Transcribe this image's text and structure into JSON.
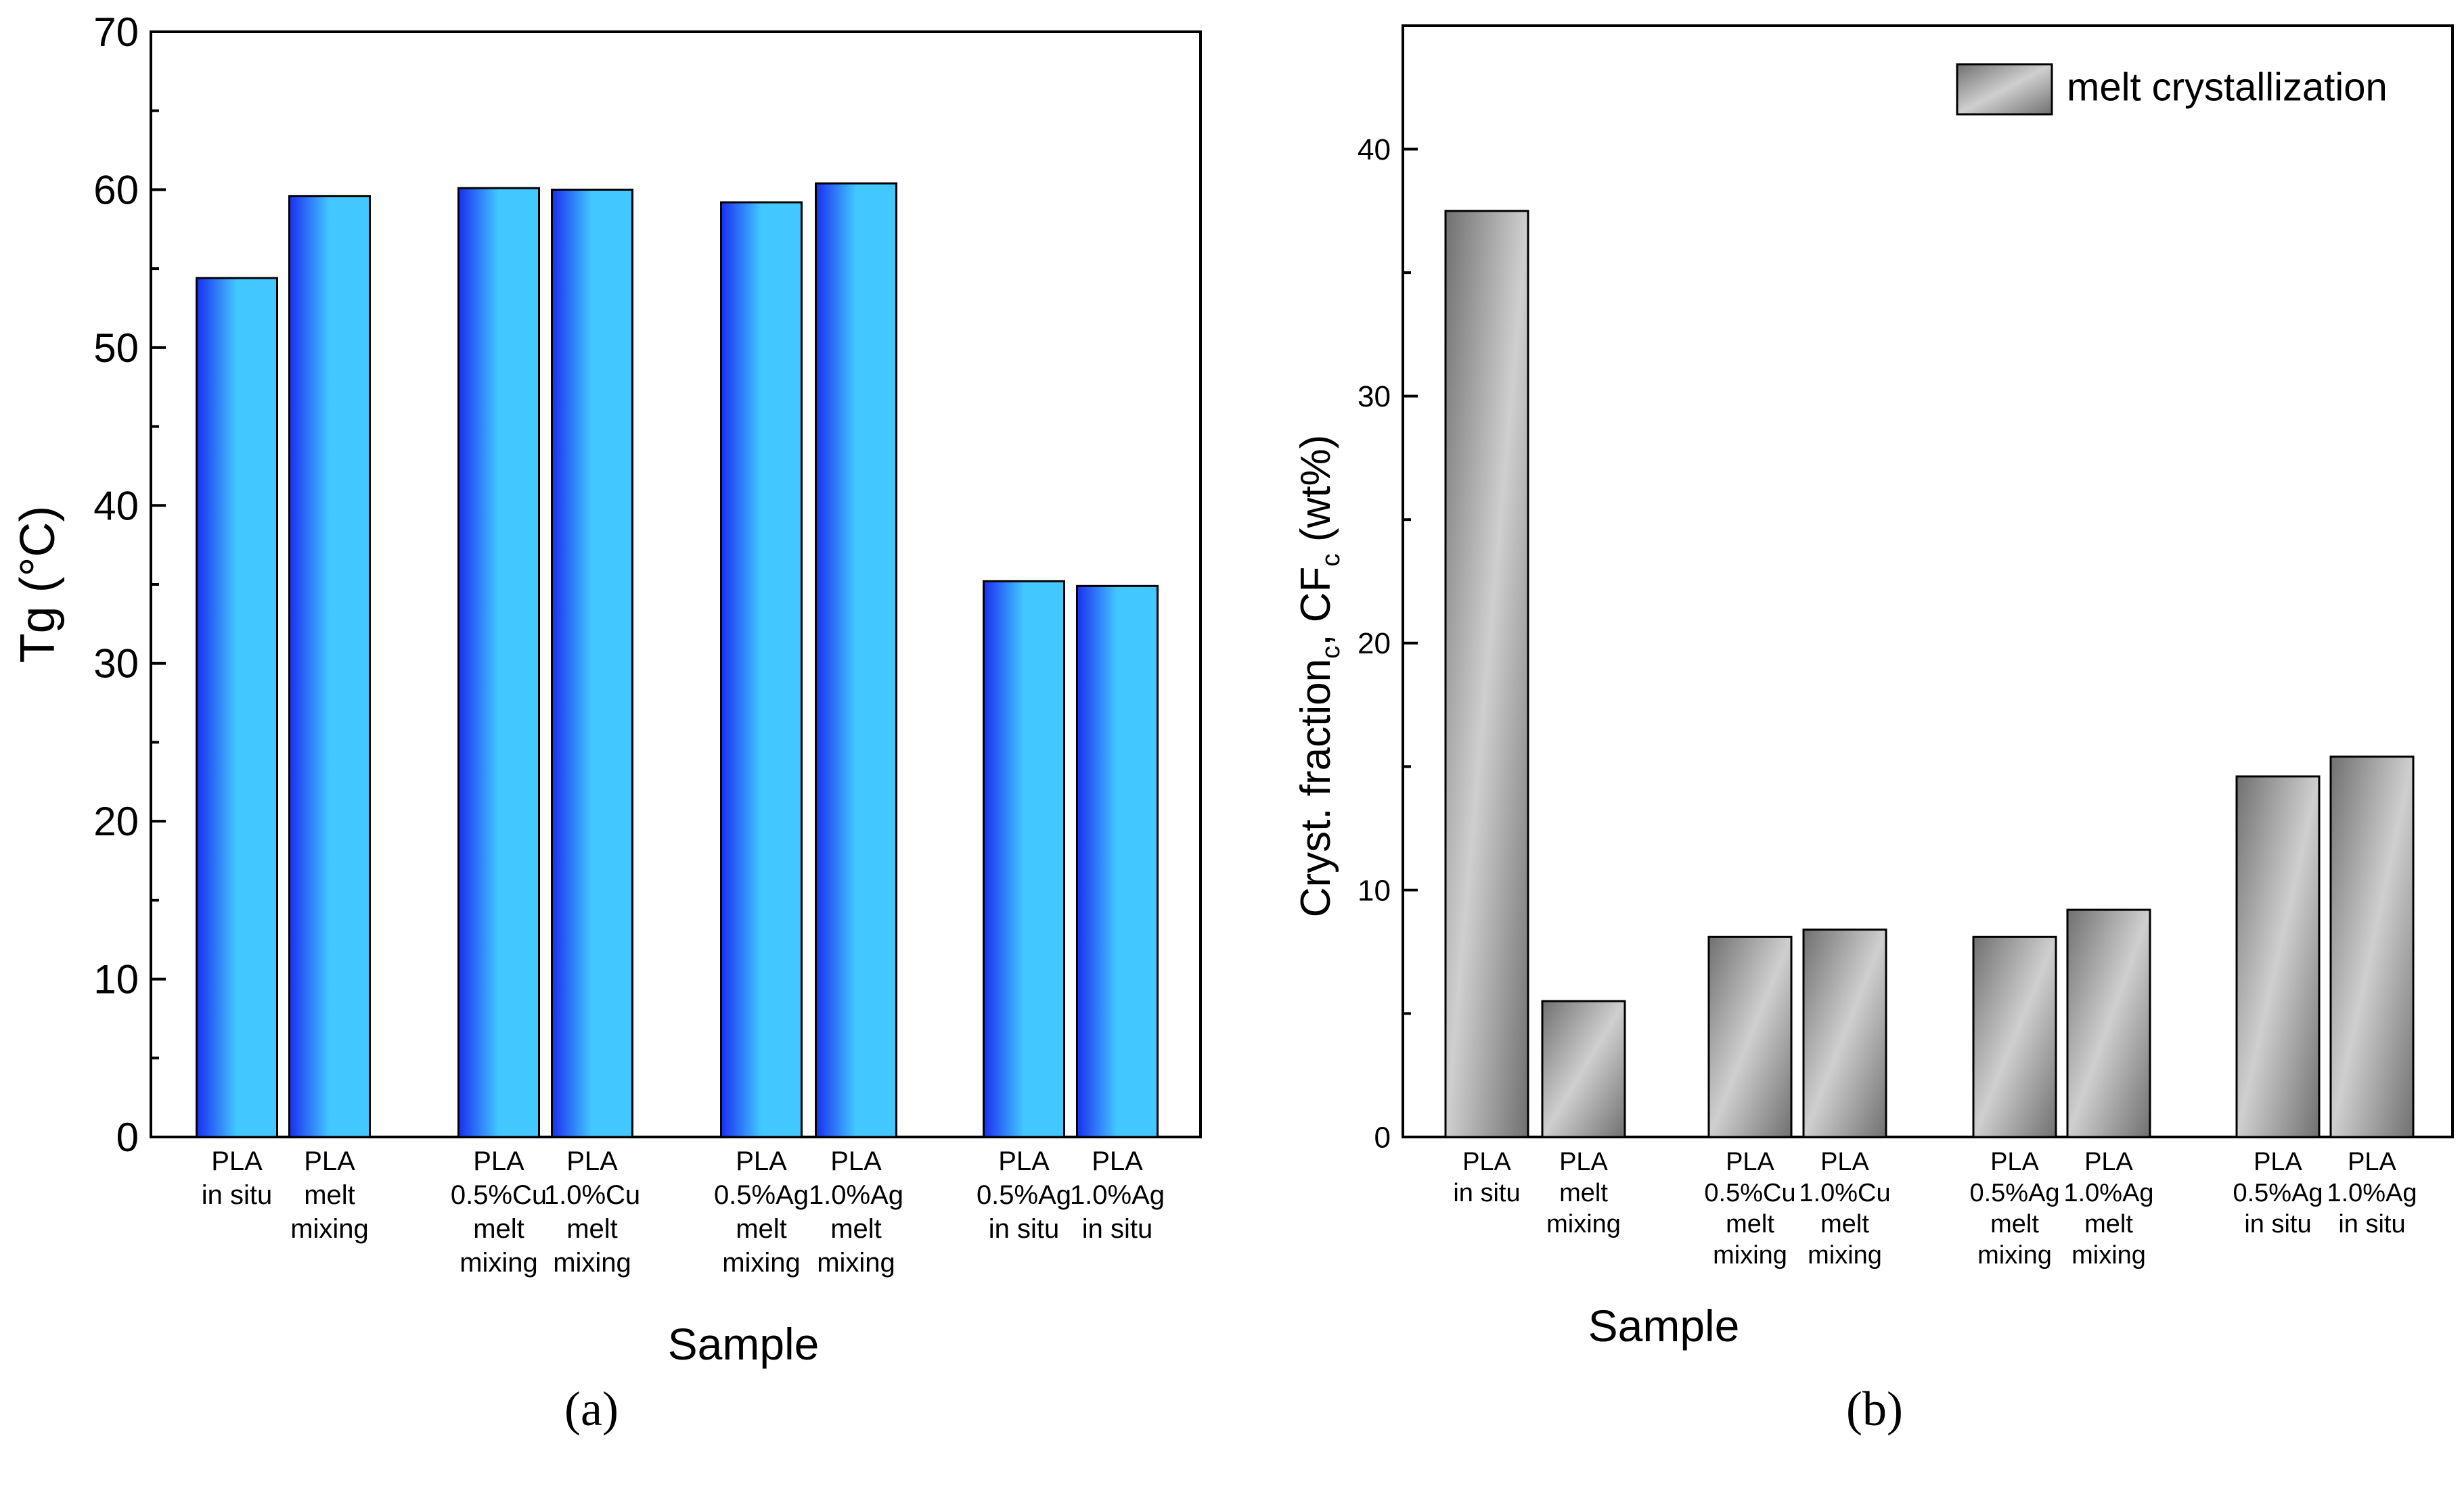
{
  "chart_data": [
    {
      "type": "bar",
      "panel_label": "(a)",
      "xlabel": "Sample",
      "ylabel": "Tg (°C)",
      "ylim": [
        0,
        70
      ],
      "yticks": [
        0,
        10,
        20,
        30,
        40,
        50,
        60,
        70
      ],
      "grid": false,
      "categories": [
        [
          "PLA",
          "in situ"
        ],
        [
          "PLA",
          "melt",
          "mixing"
        ],
        [
          "PLA",
          "0.5%Cu",
          "melt",
          "mixing"
        ],
        [
          "PLA",
          "1.0%Cu",
          "melt",
          "mixing"
        ],
        [
          "PLA",
          "0.5%Ag",
          "melt",
          "mixing"
        ],
        [
          "PLA",
          "1.0%Ag",
          "melt",
          "mixing"
        ],
        [
          "PLA",
          "0.5%Ag",
          "in situ"
        ],
        [
          "PLA",
          "1.0%Ag",
          "in situ"
        ]
      ],
      "groups": [
        [
          0,
          1
        ],
        [
          2,
          3
        ],
        [
          4,
          5
        ],
        [
          6,
          7
        ]
      ],
      "values": [
        54.4,
        59.6,
        60.1,
        60.0,
        59.2,
        60.4,
        35.2,
        34.9
      ],
      "colors": {
        "dark": "#1a2ff0",
        "light": "#42c8ff"
      }
    },
    {
      "type": "bar",
      "panel_label": "(b)",
      "xlabel": "Sample",
      "ylabel_parts": [
        "Cryst. fraction",
        "c",
        ", CF",
        "c",
        " (wt%)"
      ],
      "ylim": [
        0,
        45
      ],
      "yticks": [
        0,
        10,
        20,
        30,
        40
      ],
      "grid": false,
      "legend": {
        "position": "top-right",
        "entries": [
          "melt crystallization"
        ]
      },
      "categories": [
        [
          "PLA",
          "in situ"
        ],
        [
          "PLA",
          "melt",
          "mixing"
        ],
        [
          "PLA",
          "0.5%Cu",
          "melt",
          "mixing"
        ],
        [
          "PLA",
          "1.0%Cu",
          "melt",
          "mixing"
        ],
        [
          "PLA",
          "0.5%Ag",
          "melt",
          "mixing"
        ],
        [
          "PLA",
          "1.0%Ag",
          "melt",
          "mixing"
        ],
        [
          "PLA",
          "0.5%Ag",
          "in situ"
        ],
        [
          "PLA",
          "1.0%Ag",
          "in situ"
        ]
      ],
      "groups": [
        [
          0,
          1
        ],
        [
          2,
          3
        ],
        [
          4,
          5
        ],
        [
          6,
          7
        ]
      ],
      "values": [
        37.5,
        5.5,
        8.1,
        8.4,
        8.1,
        9.2,
        14.6,
        15.4
      ],
      "colors": {
        "dark": "#707070",
        "light": "#cfcfcf"
      }
    }
  ]
}
